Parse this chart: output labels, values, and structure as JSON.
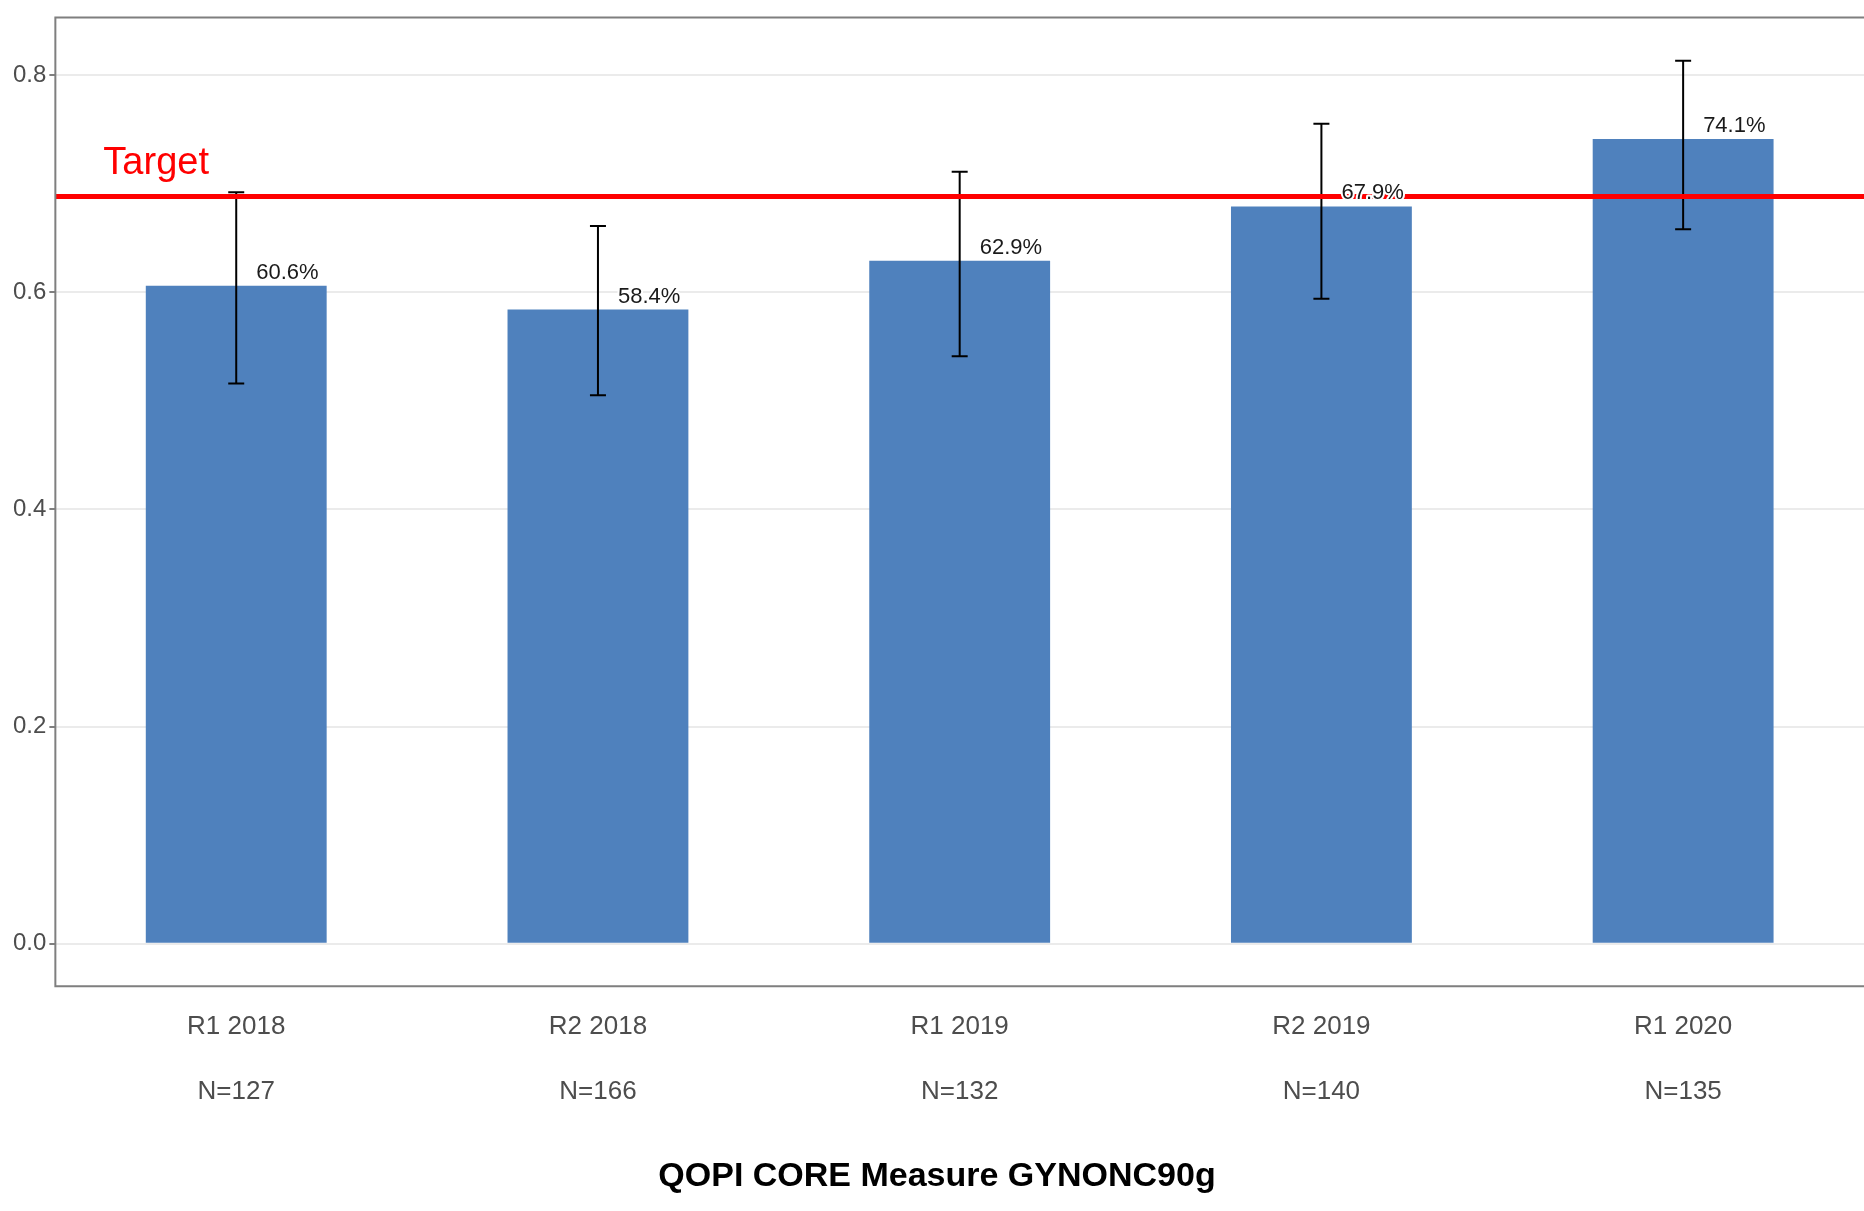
{
  "chart_data": {
    "type": "bar",
    "title": "QOPI CORE Measure GYNONC90g",
    "categories": [
      "R1 2018\nN=127",
      "R2 2018\nN=166",
      "R1 2019\nN=132",
      "R2 2019\nN=140",
      "R1 2020\nN=135"
    ],
    "values": [
      0.606,
      0.584,
      0.629,
      0.679,
      0.741
    ],
    "value_labels": [
      "60.6%",
      "58.4%",
      "62.9%",
      "67.9%",
      "74.1%"
    ],
    "errors": [
      [
        0.516,
        0.692
      ],
      [
        0.505,
        0.661
      ],
      [
        0.541,
        0.711
      ],
      [
        0.594,
        0.755
      ],
      [
        0.658,
        0.813
      ]
    ],
    "color": "#4f81bd",
    "ylim": [
      -0.039,
      0.853
    ],
    "yticks": [
      {
        "value": 0,
        "label": "0.0"
      },
      {
        "value": 0.2,
        "label": "0.2"
      },
      {
        "value": 0.4,
        "label": "0.4"
      },
      {
        "value": 0.6,
        "label": "0.6"
      },
      {
        "value": 0.8,
        "label": "0.8"
      }
    ],
    "grid": "y",
    "ref_lines": [
      {
        "axis": "y",
        "value": 0.688,
        "label": "Target",
        "color": "#ff0000"
      }
    ]
  }
}
